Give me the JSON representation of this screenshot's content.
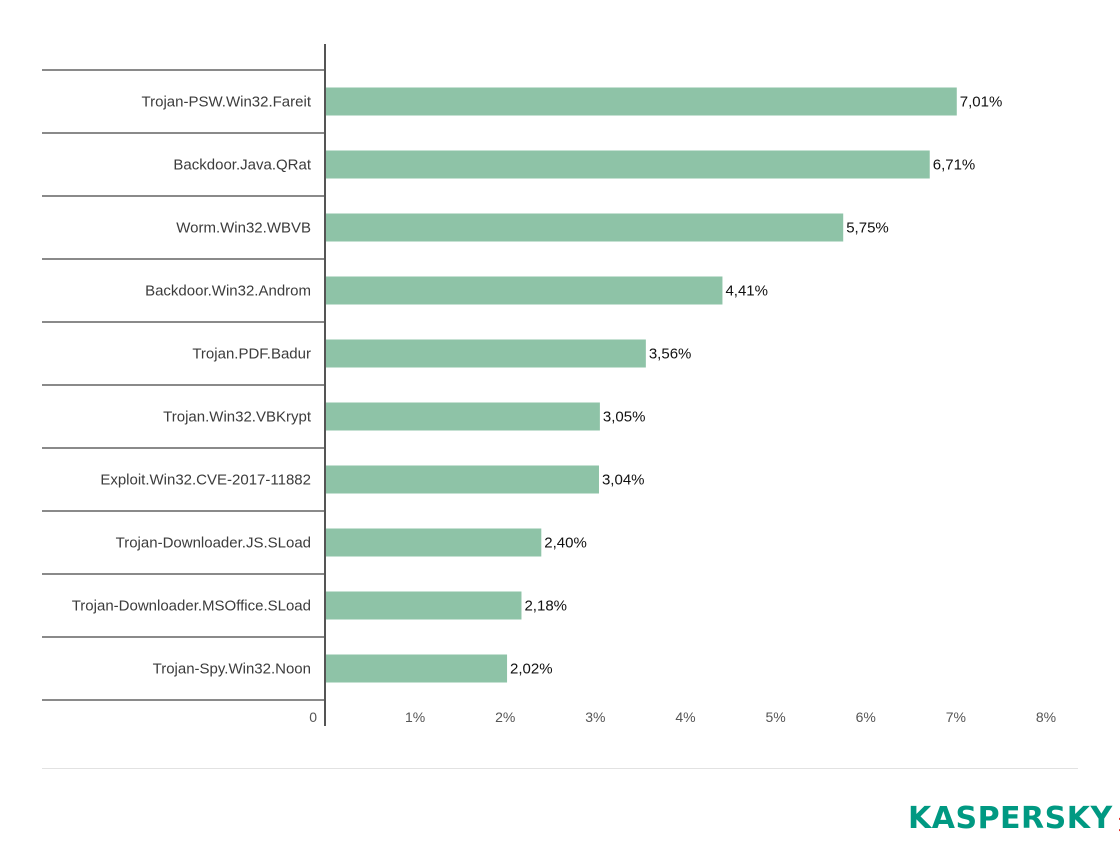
{
  "chart_data": {
    "type": "bar",
    "orientation": "horizontal",
    "categories": [
      "Trojan-PSW.Win32.Fareit",
      "Backdoor.Java.QRat",
      "Worm.Win32.WBVB",
      "Backdoor.Win32.Androm",
      "Trojan.PDF.Badur",
      "Trojan.Win32.VBKrypt",
      "Exploit.Win32.CVE-2017-11882",
      "Trojan-Downloader.JS.SLoad",
      "Trojan-Downloader.MSOffice.SLoad",
      "Trojan-Spy.Win32.Noon"
    ],
    "values": [
      7.01,
      6.71,
      5.75,
      4.41,
      3.56,
      3.05,
      3.04,
      2.4,
      2.18,
      2.02
    ],
    "value_labels": [
      "7,01%",
      "6,71%",
      "5,75%",
      "4,41%",
      "3,56%",
      "3,05%",
      "3,04%",
      "2,40%",
      "2,18%",
      "2,02%"
    ],
    "xlim": [
      0,
      8
    ],
    "x_ticks": [
      0,
      1,
      2,
      3,
      4,
      5,
      6,
      7,
      8
    ],
    "x_tick_labels": [
      "0",
      "1%",
      "2%",
      "3%",
      "4%",
      "5%",
      "6%",
      "7%",
      "8%"
    ],
    "title": "",
    "xlabel": "",
    "ylabel": "",
    "grid": false,
    "legend": "none",
    "colors": {
      "bar": "#8ec3a7",
      "axis": "#555555",
      "row_rule": "#444444"
    }
  },
  "branding": {
    "logo_text": "KASPERSKY",
    "logo_sub": "lab",
    "logo_color": "#009982",
    "logo_accent": "#e4312b"
  }
}
